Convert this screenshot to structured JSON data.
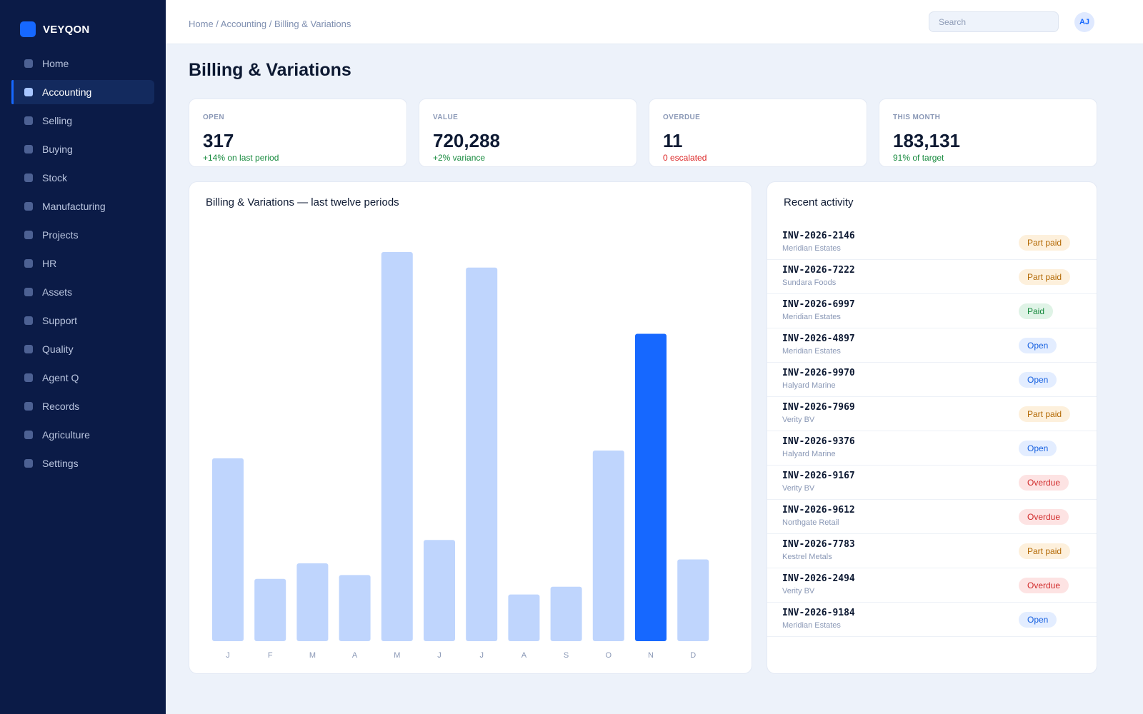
{
  "brand": {
    "name": "VEYQON"
  },
  "nav": {
    "items": [
      {
        "label": "Home",
        "active": false
      },
      {
        "label": "Accounting",
        "active": true
      },
      {
        "label": "Selling",
        "active": false
      },
      {
        "label": "Buying",
        "active": false
      },
      {
        "label": "Stock",
        "active": false
      },
      {
        "label": "Manufacturing",
        "active": false
      },
      {
        "label": "Projects",
        "active": false
      },
      {
        "label": "HR",
        "active": false
      },
      {
        "label": "Assets",
        "active": false
      },
      {
        "label": "Support",
        "active": false
      },
      {
        "label": "Quality",
        "active": false
      },
      {
        "label": "Agent Q",
        "active": false
      },
      {
        "label": "Records",
        "active": false
      },
      {
        "label": "Agriculture",
        "active": false
      },
      {
        "label": "Settings",
        "active": false
      }
    ]
  },
  "topbar": {
    "breadcrumb": "Home / Accounting / Billing & Variations",
    "search_placeholder": "Search",
    "search_value": "",
    "avatar_initials": "AJ"
  },
  "page": {
    "title": "Billing & Variations"
  },
  "kpis": [
    {
      "label": "OPEN",
      "value": "317",
      "delta": "+14% on last period",
      "tone": "good"
    },
    {
      "label": "VALUE",
      "value": "720,288",
      "delta": "+2% variance",
      "tone": "good"
    },
    {
      "label": "OVERDUE",
      "value": "11",
      "delta": "0 escalated",
      "tone": "bad"
    },
    {
      "label": "THIS MONTH",
      "value": "183,131",
      "delta": "91% of target",
      "tone": "good"
    }
  ],
  "chart": {
    "title": "Billing & Variations — last twelve periods"
  },
  "chart_data": {
    "type": "bar",
    "categories": [
      "J",
      "F",
      "M",
      "A",
      "M",
      "J",
      "J",
      "A",
      "S",
      "O",
      "N",
      "D"
    ],
    "values": [
      47,
      16,
      20,
      17,
      100,
      26,
      96,
      12,
      14,
      49,
      79,
      21
    ],
    "highlight_index": 10,
    "ylim": [
      0,
      100
    ],
    "grid": false,
    "colors": {
      "bar": "#bfd5fd",
      "highlight": "#1668ff"
    }
  },
  "activity": {
    "title": "Recent activity",
    "items": [
      {
        "id": "INV-2026-2146",
        "name": "Meridian Estates",
        "status": "Part paid",
        "kind": "partpaid"
      },
      {
        "id": "INV-2026-7222",
        "name": "Sundara Foods",
        "status": "Part paid",
        "kind": "partpaid"
      },
      {
        "id": "INV-2026-6997",
        "name": "Meridian Estates",
        "status": "Paid",
        "kind": "paid"
      },
      {
        "id": "INV-2026-4897",
        "name": "Meridian Estates",
        "status": "Open",
        "kind": "open"
      },
      {
        "id": "INV-2026-9970",
        "name": "Halyard Marine",
        "status": "Open",
        "kind": "open"
      },
      {
        "id": "INV-2026-7969",
        "name": "Verity BV",
        "status": "Part paid",
        "kind": "partpaid"
      },
      {
        "id": "INV-2026-9376",
        "name": "Halyard Marine",
        "status": "Open",
        "kind": "open"
      },
      {
        "id": "INV-2026-9167",
        "name": "Verity BV",
        "status": "Overdue",
        "kind": "overdue"
      },
      {
        "id": "INV-2026-9612",
        "name": "Northgate Retail",
        "status": "Overdue",
        "kind": "overdue"
      },
      {
        "id": "INV-2026-7783",
        "name": "Kestrel Metals",
        "status": "Part paid",
        "kind": "partpaid"
      },
      {
        "id": "INV-2026-2494",
        "name": "Verity BV",
        "status": "Overdue",
        "kind": "overdue"
      },
      {
        "id": "INV-2026-9184",
        "name": "Meridian Estates",
        "status": "Open",
        "kind": "open"
      }
    ]
  }
}
